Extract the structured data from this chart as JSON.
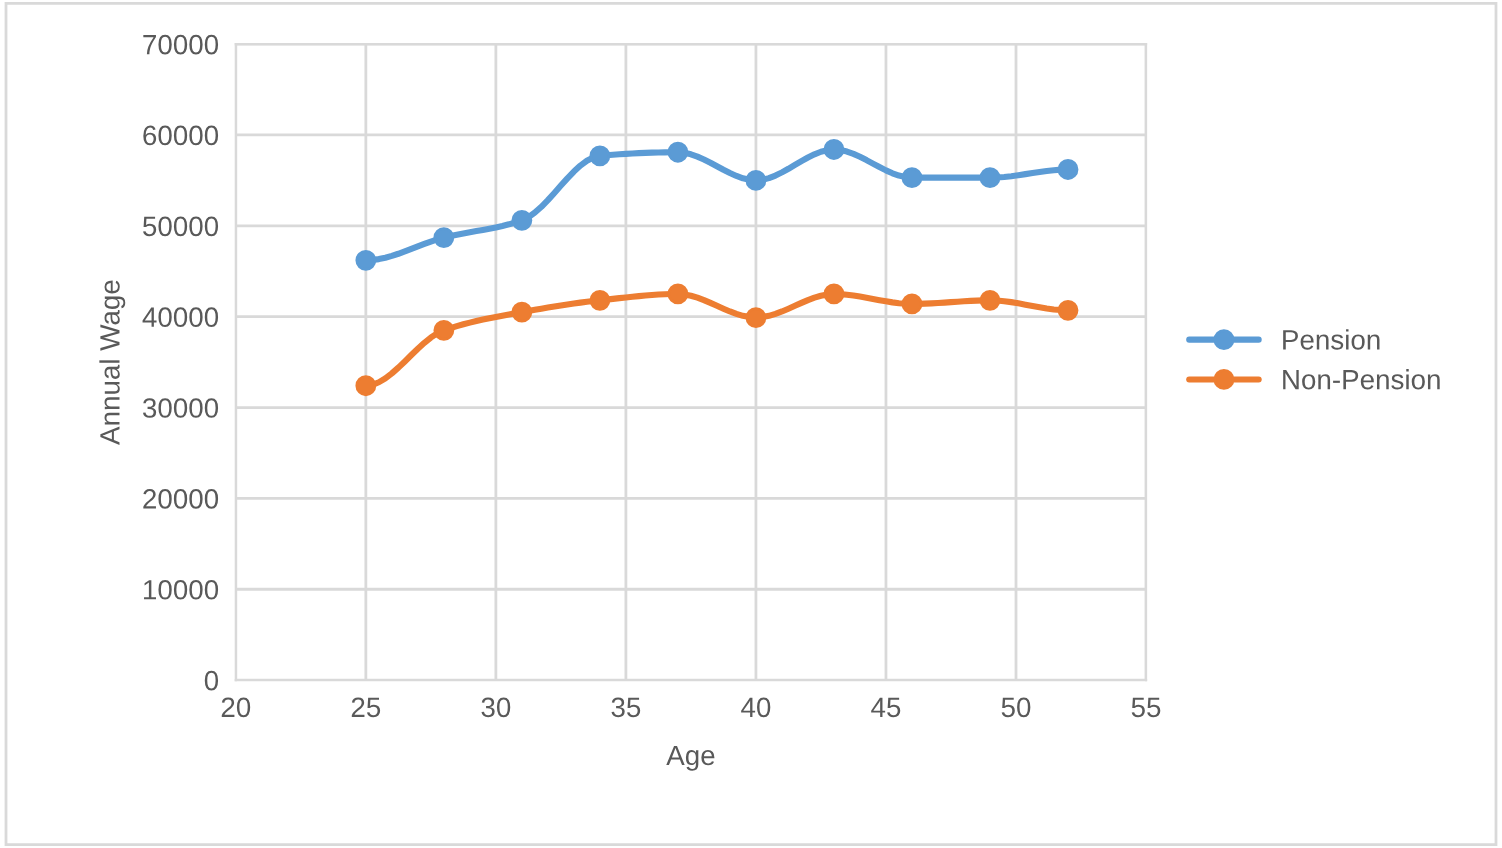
{
  "chart_data": {
    "type": "line",
    "xlabel": "Age",
    "ylabel": "Annual Wage",
    "x": [
      25,
      28,
      31,
      34,
      37,
      40,
      43,
      46,
      49,
      52
    ],
    "series": [
      {
        "name": "Pension",
        "color": "#5b9bd5",
        "values": [
          46200,
          48700,
          50600,
          57700,
          58100,
          55000,
          58400,
          55300,
          55300,
          56200
        ]
      },
      {
        "name": "Non-Pension",
        "color": "#ed7d31",
        "values": [
          32400,
          38500,
          40500,
          41800,
          42500,
          39900,
          42500,
          41400,
          41800,
          40700
        ]
      }
    ],
    "xlim": [
      20,
      55
    ],
    "xticks": [
      20,
      25,
      30,
      35,
      40,
      45,
      50,
      55
    ],
    "ylim": [
      0,
      70000
    ],
    "yticks": [
      0,
      10000,
      20000,
      30000,
      40000,
      50000,
      60000,
      70000
    ],
    "grid": true,
    "legend": "right",
    "marker": "circle",
    "line_style": "solid"
  }
}
